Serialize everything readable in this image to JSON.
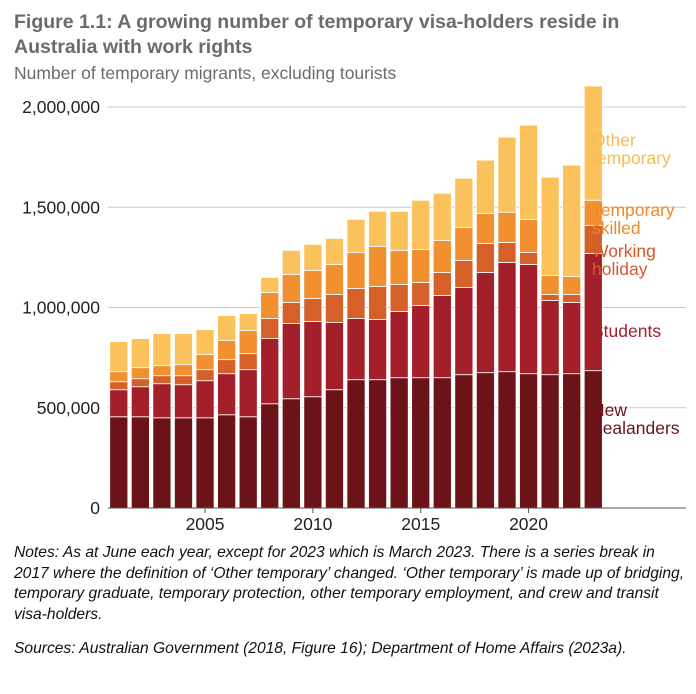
{
  "title": "Figure 1.1: A growing number of temporary visa-holders reside in Australia with work rights",
  "subtitle": "Number of temporary migrants, excluding tourists",
  "notes": "Notes: As at June each year, except for 2023 which is March 2023. There is a series break in 2017 where the definition of ‘Other temporary’ changed. ‘Other temporary’ is made up of bridging, temporary graduate, temporary protection, other temporary employment, and crew and transit visa-holders.",
  "sources": "Sources: Australian Government (2018, Figure 16); Department of Home Affairs (2023a).",
  "colors": {
    "new_zealanders": "#6b1318",
    "students": "#a3202b",
    "working_holiday": "#d5602a",
    "temporary_skilled": "#f28f2e",
    "other_temporary": "#fbc25b",
    "label_other_temporary": "#f7bb55",
    "label_temporary_skilled": "#ef8a2a",
    "label_working_holiday": "#d2592a",
    "label_students": "#a3202b",
    "label_new_zealanders": "#6b1318",
    "grid": "#c8c8c8",
    "axis_text": "#222222"
  },
  "chart_data": {
    "type": "bar",
    "stacked": true,
    "x": [
      2001,
      2002,
      2003,
      2004,
      2005,
      2006,
      2007,
      2008,
      2009,
      2010,
      2011,
      2012,
      2013,
      2014,
      2015,
      2016,
      2017,
      2018,
      2019,
      2020,
      2021,
      2022,
      2023
    ],
    "ylim": [
      0,
      2100000
    ],
    "xlim": [
      2000.5,
      2027.3
    ],
    "yticks": [
      0,
      500000,
      1000000,
      1500000,
      2000000
    ],
    "ytick_labels": [
      "0",
      "500,000",
      "1,000,000",
      "1,500,000",
      "2,000,000"
    ],
    "xticks": [
      2005,
      2010,
      2015,
      2020
    ],
    "xtick_labels": [
      "2005",
      "2010",
      "2015",
      "2020"
    ],
    "grid": true,
    "series": [
      {
        "name": "New Zealanders",
        "label_lines": [
          "New",
          "Zealanders"
        ],
        "color_key": "new_zealanders",
        "values": [
          455000,
          455000,
          450000,
          450000,
          450000,
          465000,
          455000,
          520000,
          545000,
          555000,
          590000,
          640000,
          640000,
          650000,
          650000,
          650000,
          665000,
          675000,
          680000,
          670000,
          665000,
          670000,
          685000
        ]
      },
      {
        "name": "Students",
        "label_lines": [
          "Students"
        ],
        "color_key": "students",
        "values": [
          135000,
          150000,
          170000,
          165000,
          185000,
          205000,
          235000,
          325000,
          375000,
          375000,
          335000,
          305000,
          300000,
          330000,
          360000,
          410000,
          435000,
          500000,
          545000,
          545000,
          370000,
          355000,
          585000
        ]
      },
      {
        "name": "Working holiday",
        "label_lines": [
          "Working",
          "holiday"
        ],
        "color_key": "working_holiday",
        "values": [
          40000,
          40000,
          40000,
          45000,
          55000,
          70000,
          80000,
          100000,
          105000,
          115000,
          140000,
          150000,
          165000,
          135000,
          115000,
          115000,
          135000,
          145000,
          100000,
          60000,
          30000,
          40000,
          140000
        ]
      },
      {
        "name": "Temporary skilled",
        "label_lines": [
          "Temporary",
          "skilled"
        ],
        "color_key": "temporary_skilled",
        "values": [
          50000,
          55000,
          50000,
          55000,
          75000,
          95000,
          115000,
          130000,
          140000,
          140000,
          150000,
          180000,
          200000,
          170000,
          165000,
          160000,
          165000,
          150000,
          150000,
          165000,
          95000,
          90000,
          125000
        ]
      },
      {
        "name": "Other temporary",
        "label_lines": [
          "Other",
          "temporary"
        ],
        "color_key": "other_temporary",
        "values": [
          150000,
          145000,
          160000,
          155000,
          125000,
          125000,
          85000,
          75000,
          120000,
          130000,
          130000,
          165000,
          175000,
          195000,
          245000,
          235000,
          245000,
          265000,
          375000,
          470000,
          490000,
          555000,
          570000
        ]
      }
    ]
  }
}
